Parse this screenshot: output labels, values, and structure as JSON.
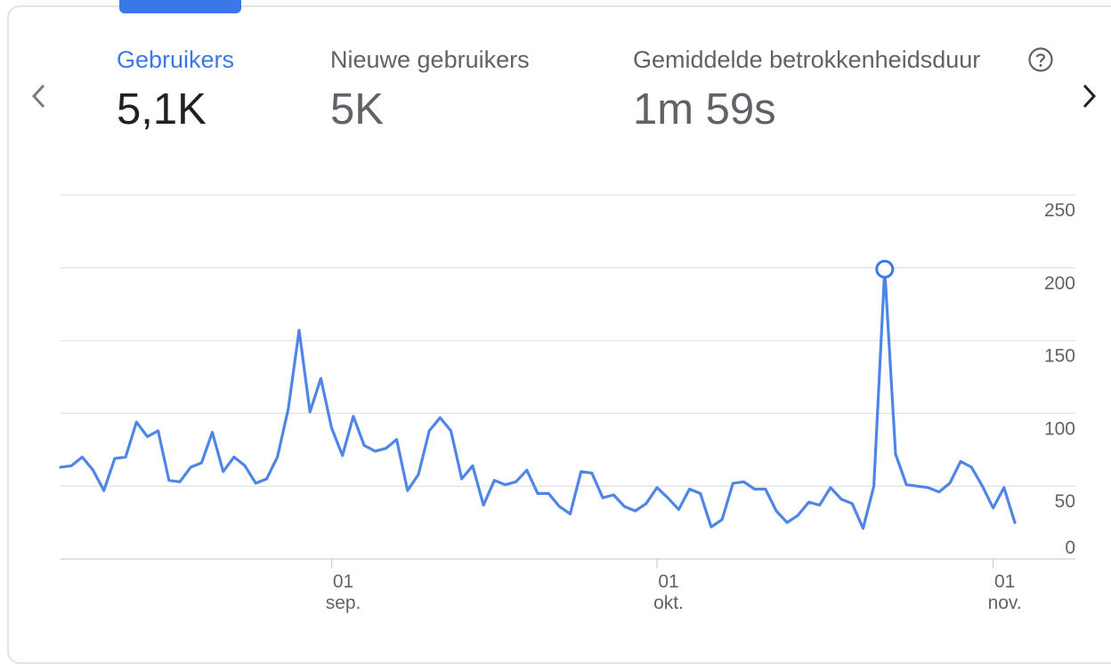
{
  "metrics": [
    {
      "label": "Gebruikers",
      "value": "5,1K"
    },
    {
      "label": "Nieuwe gebruikers",
      "value": "5K"
    },
    {
      "label": "Gemiddelde betrokkenheidsduur",
      "value": "1m 59s"
    }
  ],
  "icons": {
    "prev": "chevron-left-icon",
    "next": "chevron-right-icon",
    "help": "help-circle-icon"
  },
  "colors": {
    "accent": "#3b78e7",
    "line": "#4f86e6",
    "grid": "#e3e3e3"
  },
  "chart_data": {
    "type": "line",
    "title": "",
    "xlabel": "",
    "ylabel": "",
    "ylim": [
      0,
      250
    ],
    "yticks": [
      "250",
      "200",
      "150",
      "100",
      "50",
      "0"
    ],
    "x_start": "2023-08-07",
    "x_ticks": [
      {
        "date": "2023-09-01",
        "day": "01",
        "month": "sep."
      },
      {
        "date": "2023-10-01",
        "day": "01",
        "month": "okt."
      },
      {
        "date": "2023-11-01",
        "day": "01",
        "month": "nov."
      }
    ],
    "grid": true,
    "highlight_index": 76,
    "series": [
      {
        "values": [
          63,
          64,
          70,
          61,
          47,
          69,
          70,
          94,
          84,
          88,
          54,
          53,
          63,
          66,
          87,
          60,
          70,
          64,
          52,
          55,
          70,
          103,
          157,
          101,
          124,
          90,
          71,
          98,
          78,
          74,
          76,
          82,
          47,
          58,
          88,
          97,
          88,
          55,
          64,
          37,
          54,
          51,
          53,
          61,
          45,
          45,
          36,
          31,
          60,
          59,
          42,
          44,
          36,
          33,
          38,
          49,
          42,
          34,
          48,
          45,
          22,
          27,
          52,
          53,
          48,
          48,
          33,
          25,
          30,
          39,
          37,
          49,
          41,
          38,
          21,
          50,
          199,
          72,
          51,
          50,
          49,
          46,
          52,
          67,
          63,
          50,
          35,
          49,
          25
        ]
      }
    ]
  }
}
